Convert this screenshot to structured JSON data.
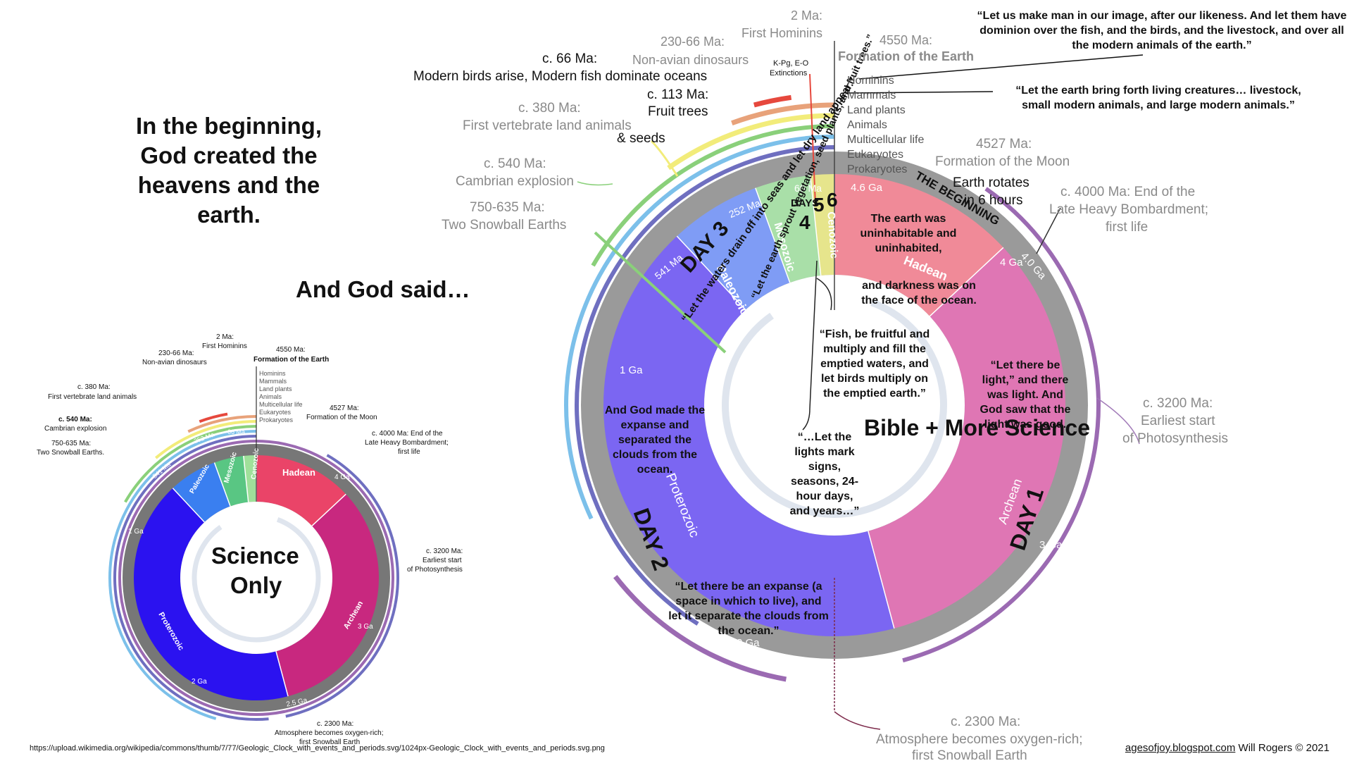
{
  "headline": "In the beginning, God created the heavens and the earth.",
  "and_god_said": "And God said…",
  "quotes": {
    "man": "“Let us make man in our image, after our likeness.  And let them have dominion over the fish, and the birds, and the livestock, and over all the modern animals of the earth.”",
    "creatures": "“Let the earth bring forth living creatures… livestock, small modern animals, and large modern animals.”",
    "uninhabitable": "The earth was uninhabitable and uninhabited,",
    "darkness": "and darkness was on the face of the ocean.",
    "light": "“Let there be light,” and there was light.  And God saw that the light was good.",
    "expanse_made": "And God made the expanse and separated the clouds from the ocean.",
    "expanse_let": "“Let there be an expanse (a space in which to live), and let it separate the clouds from the ocean.”",
    "fish": "“Fish, be fruitful and multiply and fill the emptied waters, and let birds multiply on the emptied earth.”",
    "lights": "“…Let the lights mark signs, seasons, 24-hour days, and years…”",
    "waters": "“Let the waters drain off into seas and let dry land appear.”",
    "vegetation": "“Let the earth sprout vegetation, seed plants, and fruit trees.”"
  },
  "center_small": "Science Only",
  "center_big": "Bible + More Science",
  "days": {
    "day1": "DAY 1",
    "day2": "DAY 2",
    "day3": "DAY 3",
    "days_label": "DAYS",
    "d4": "4",
    "d5": "5",
    "d6": "6",
    "beginning": "THE BEGINNING"
  },
  "eons": {
    "hadean": "Hadean",
    "archean": "Archean",
    "proterozoic": "Proterozoic",
    "paleozoic": "Paleozoic",
    "mesozoic": "Mesozoic",
    "cenozoic": "Cenozoic"
  },
  "ticks": {
    "t46": "4.6 Ga",
    "t40": "4.0 Ga",
    "t4": "4 Ga",
    "t3": "3 Ga",
    "t25": "2.5 Ga",
    "t2": "2 Ga",
    "t1": "1 Ga",
    "t541": "541 Ma",
    "t252": "252 Ma",
    "t66": "66 Ma"
  },
  "legend": [
    "Hominins",
    "Mammals",
    "Land plants",
    "Animals",
    "Multicellular life",
    "Eukaryotes",
    "Prokaryotes"
  ],
  "events": {
    "hominins_time": "2 Ma:",
    "hominins_text": "First Hominins",
    "formation_time": "4550 Ma:",
    "formation_text": "Formation of the Earth",
    "dinos_time": "230-66 Ma:",
    "dinos_text": "Non-avian dinosaurs",
    "kpg": "K-Pg, E-O",
    "kpg2": "Extinctions",
    "ma66_time": "c. 66 Ma:",
    "ma66_text": "Modern birds arise, Modern fish dominate oceans",
    "ma113_time": "c. 113 Ma:",
    "ma113_text": "Fruit trees",
    "seeds": "& seeds",
    "vert_time": "c. 380 Ma:",
    "vert_text": "First vertebrate land animals",
    "small_vert_time": "c. 380 Ma:",
    "small_vert_text": "First vertebrate land animals",
    "cambrian_time": "c. 540 Ma:",
    "cambrian_text": "Cambrian explosion",
    "snow_time": "750-635 Ma:",
    "snow_text": "Two Snowball Earths",
    "small_snow": "Two Snowball Earths.",
    "moon_time": "4527 Ma:",
    "moon_text": "Formation of the Moon",
    "rotates1": "Earth rotates",
    "rotates2": "in 6 hours",
    "lhb1": "c. 4000 Ma: End of the",
    "lhb2": "Late Heavy Bombardment;",
    "lhb3": "first life",
    "photo1": "c. 3200 Ma:",
    "photo2": "Earliest start",
    "photo3": "of Photosynthesis",
    "oxy1": "c. 2300 Ma:",
    "oxy2": "Atmosphere becomes oxygen-rich;",
    "oxy3": "first Snowball Earth",
    "small_oxy2": "Atmosphere becomes oxygen-rich;",
    "small_lhb2": "Late Heavy Bombardment;"
  },
  "footer": {
    "url": "https://upload.wikimedia.org/wikipedia/commons/thumb/7/77/Geologic_Clock_with_events_and_periods.svg/1024px-Geologic_Clock_with_events_and_periods.svg.png",
    "blog": "agesofjoy.blogspot.com",
    "credit": " Will Rogers © 2021"
  },
  "colors": {
    "hadean_big": "#f08a98",
    "archean_big": "#df76b4",
    "proterozoic_big": "#7b66f2",
    "paleozoic_big": "#7f9cf5",
    "mesozoic_big": "#a9dfa8",
    "cenozoic_big": "#e6e58c",
    "hadean_small": "#ea4468",
    "archean_small": "#c8287f",
    "proterozoic_small": "#2b12f0",
    "paleozoic_small": "#3a7ff0",
    "mesozoic_small": "#59c683",
    "cenozoic_small": "#9fe09a",
    "outer_ring": "#9a9a9a",
    "prokaryotes": "#9b6ab2",
    "eukaryotes": "#6f6fc0",
    "multicellular": "#7cc0ea",
    "animals": "#8ad07a",
    "land_plants": "#f2ec7a",
    "mammals": "#e8a27a",
    "hominins": "#e6483d"
  }
}
